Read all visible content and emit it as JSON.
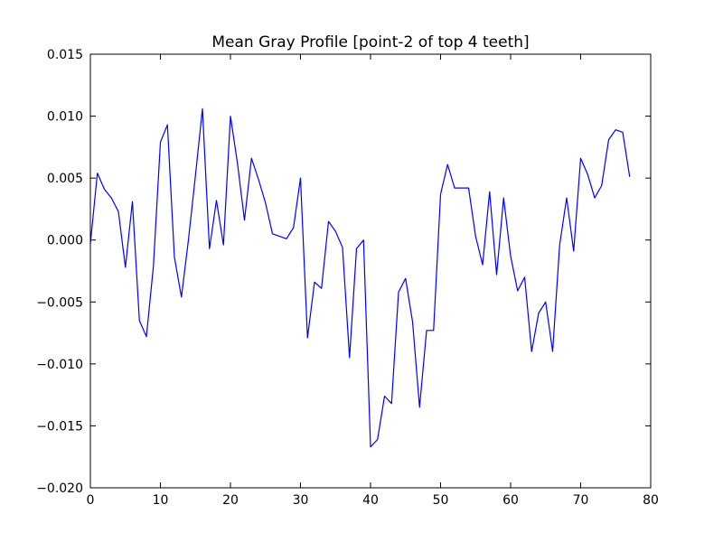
{
  "chart_data": {
    "type": "line",
    "title": "Mean Gray Profile [point-2 of top 4 teeth]",
    "xlabel": "",
    "ylabel": "",
    "xlim": [
      0,
      80
    ],
    "ylim": [
      -0.02,
      0.015
    ],
    "xticks": [
      "0",
      "10",
      "20",
      "30",
      "40",
      "50",
      "60",
      "70",
      "80"
    ],
    "yticks": [
      "0.015",
      "0.010",
      "0.005",
      "0.000",
      "−0.005",
      "−0.010",
      "−0.015",
      "−0.020"
    ],
    "grid": false,
    "series": [
      {
        "color": "#0000ff",
        "x": [
          0,
          1,
          2,
          3,
          4,
          5,
          6,
          7,
          8,
          9,
          10,
          11,
          12,
          13,
          14,
          15,
          16,
          17,
          18,
          19,
          20,
          21,
          22,
          23,
          24,
          25,
          26,
          27,
          28,
          29,
          30,
          31,
          32,
          33,
          34,
          35,
          36,
          37,
          38,
          39,
          40,
          41,
          42,
          43,
          44,
          45,
          46,
          47,
          48,
          49,
          50,
          51,
          52,
          53,
          54,
          55,
          56,
          57,
          58,
          59,
          60,
          61,
          62,
          63,
          64,
          65,
          66,
          67,
          68,
          69,
          70,
          71,
          72,
          73,
          74,
          75,
          76,
          77
        ],
        "values": [
          -0.0003,
          0.0054,
          0.0041,
          0.0034,
          0.0023,
          -0.0022,
          0.0031,
          -0.0065,
          -0.0078,
          -0.0021,
          0.0079,
          0.0093,
          -0.0014,
          -0.0046,
          0.0,
          0.0052,
          0.0106,
          -0.0007,
          0.0032,
          -0.0004,
          0.01,
          0.0062,
          0.0016,
          0.0066,
          0.0049,
          0.003,
          0.0005,
          0.0003,
          0.0001,
          0.001,
          0.005,
          -0.0079,
          -0.0034,
          -0.0039,
          0.0015,
          0.0007,
          -0.0006,
          -0.0095,
          -0.0007,
          0.0,
          -0.0167,
          -0.0161,
          -0.0126,
          -0.0132,
          -0.0042,
          -0.0031,
          -0.0066,
          -0.0135,
          -0.0073,
          -0.0073,
          0.0037,
          0.0061,
          0.0042,
          0.0042,
          0.0042,
          0.0003,
          -0.002,
          0.0039,
          -0.0028,
          0.0034,
          -0.0013,
          -0.0041,
          -0.003,
          -0.009,
          -0.0059,
          -0.005,
          -0.009,
          -0.0004,
          0.0034,
          -0.0009,
          0.0066,
          0.0053,
          0.0034,
          0.0044,
          0.0081,
          0.0089,
          0.0087,
          0.0051
        ]
      }
    ]
  }
}
